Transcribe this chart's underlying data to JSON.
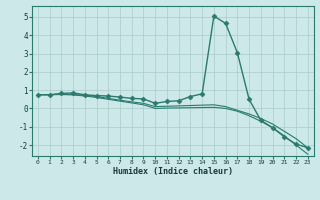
{
  "xlabel": "Humidex (Indice chaleur)",
  "bg_color": "#cce8e8",
  "grid_color": "#aacccc",
  "line_color": "#2a7a6e",
  "spine_color": "#2a7a6e",
  "xlim": [
    -0.5,
    23.5
  ],
  "ylim": [
    -2.6,
    5.6
  ],
  "xticks": [
    0,
    1,
    2,
    3,
    4,
    5,
    6,
    7,
    8,
    9,
    10,
    11,
    12,
    13,
    14,
    15,
    16,
    17,
    18,
    19,
    20,
    21,
    22,
    23
  ],
  "yticks": [
    -2,
    -1,
    0,
    1,
    2,
    3,
    4,
    5
  ],
  "series": [
    {
      "x": [
        0,
        1,
        2,
        3,
        4,
        5,
        6,
        7,
        8,
        9,
        10,
        11,
        12,
        13,
        14,
        15,
        16,
        17,
        18,
        19,
        20,
        21,
        22,
        23
      ],
      "y": [
        0.75,
        0.75,
        0.82,
        0.85,
        0.75,
        0.7,
        0.68,
        0.62,
        0.55,
        0.52,
        0.28,
        0.38,
        0.42,
        0.65,
        0.8,
        5.05,
        4.65,
        3.05,
        0.5,
        -0.65,
        -1.05,
        -1.55,
        -1.95,
        -2.15
      ],
      "marker": "D",
      "markersize": 2.5,
      "linewidth": 1.0
    },
    {
      "x": [
        0,
        1,
        2,
        3,
        4,
        5,
        6,
        7,
        8,
        9,
        10,
        11,
        12,
        13,
        14,
        15,
        16,
        17,
        18,
        19,
        20,
        21,
        22,
        23
      ],
      "y": [
        0.75,
        0.75,
        0.78,
        0.76,
        0.72,
        0.65,
        0.55,
        0.45,
        0.36,
        0.28,
        0.1,
        0.12,
        0.14,
        0.16,
        0.18,
        0.2,
        0.1,
        -0.1,
        -0.3,
        -0.55,
        -0.85,
        -1.25,
        -1.65,
        -2.15
      ],
      "marker": null,
      "linewidth": 0.8
    },
    {
      "x": [
        0,
        1,
        2,
        3,
        4,
        5,
        6,
        7,
        8,
        9,
        10,
        11,
        12,
        13,
        14,
        15,
        16,
        17,
        18,
        19,
        20,
        21,
        22,
        23
      ],
      "y": [
        0.75,
        0.75,
        0.76,
        0.74,
        0.68,
        0.6,
        0.5,
        0.4,
        0.3,
        0.2,
        0.0,
        0.02,
        0.03,
        0.04,
        0.05,
        0.06,
        0.0,
        -0.15,
        -0.4,
        -0.7,
        -1.05,
        -1.5,
        -2.0,
        -2.5
      ],
      "marker": null,
      "linewidth": 0.8
    }
  ]
}
